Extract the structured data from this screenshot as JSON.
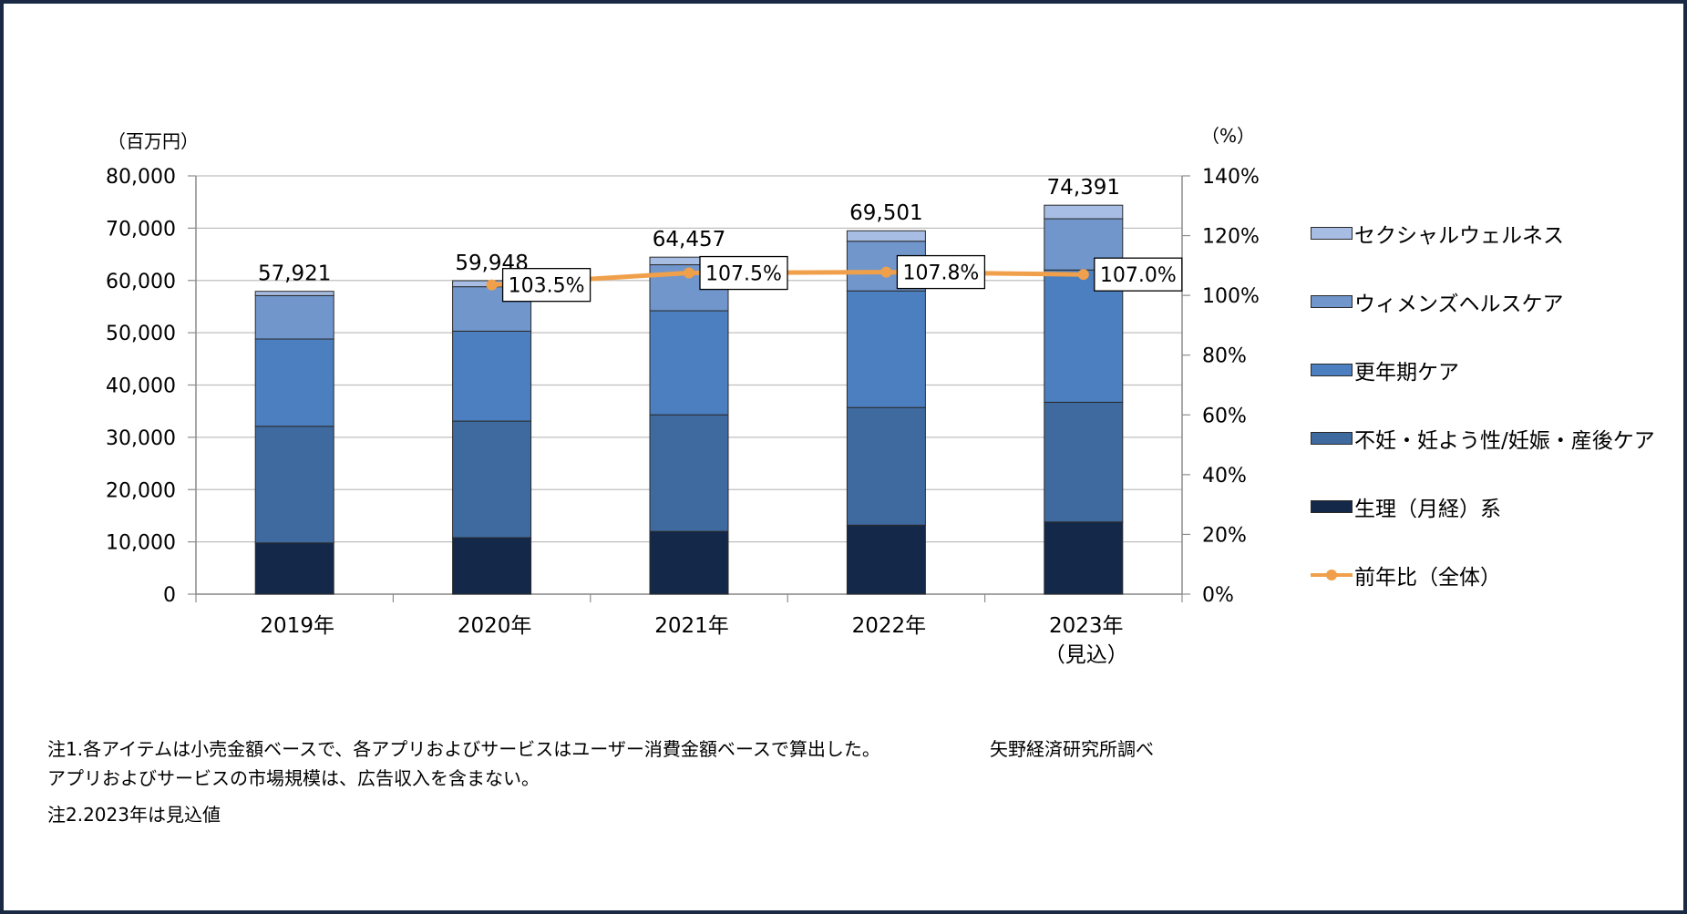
{
  "chart_data": {
    "type": "bar",
    "stacked": true,
    "categories": [
      "2019年",
      "2020年",
      "2021年",
      "2022年",
      "2023年（見込）"
    ],
    "series": [
      {
        "name": "生理（月経）系",
        "color": "#14284a",
        "values": [
          9800,
          10800,
          12000,
          13200,
          13800
        ]
      },
      {
        "name": "不妊・妊よう性/妊娠・産後ケア",
        "color": "#3f6aa0",
        "values": [
          22300,
          22300,
          22300,
          22500,
          22900
        ]
      },
      {
        "name": "更年期ケア",
        "color": "#4b7fbf",
        "values": [
          16700,
          17200,
          19900,
          22300,
          25300
        ]
      },
      {
        "name": "ウィメンズヘルスケア",
        "color": "#7096cc",
        "values": [
          8300,
          8500,
          8800,
          9500,
          9800
        ]
      },
      {
        "name": "セクシャルウェルネス",
        "color": "#a7bde3",
        "values": [
          821,
          1148,
          1457,
          2001,
          2591
        ]
      }
    ],
    "totals": [
      "57,921",
      "59,948",
      "64,457",
      "69,501",
      "74,391"
    ],
    "line": {
      "name": "前年比（全体）",
      "color": "#f0a04b",
      "values": [
        null,
        103.5,
        107.5,
        107.8,
        107.0
      ],
      "labels": [
        "",
        "103.5%",
        "107.5%",
        "107.8%",
        "107.0%"
      ]
    },
    "y_left": {
      "unit_label": "（百万円）",
      "min": 0,
      "max": 80000,
      "step": 10000,
      "tick_labels": [
        "0",
        "10,000",
        "20,000",
        "30,000",
        "40,000",
        "50,000",
        "60,000",
        "70,000",
        "80,000"
      ]
    },
    "y_right": {
      "unit_label": "（%）",
      "min": 0,
      "max": 140,
      "step": 20,
      "tick_labels": [
        "0%",
        "20%",
        "40%",
        "60%",
        "80%",
        "100%",
        "120%",
        "140%"
      ]
    },
    "x_label_lines": [
      [
        "2019年"
      ],
      [
        "2020年"
      ],
      [
        "2021年"
      ],
      [
        "2022年"
      ],
      [
        "2023年",
        "（見込）"
      ]
    ],
    "gridlines": true,
    "legend_position": "right"
  },
  "legend": {
    "items": [
      "セクシャルウェルネス",
      "ウィメンズヘルスケア",
      "更年期ケア",
      "不妊・妊よう性/妊娠・産後ケア",
      "生理（月経）系",
      "前年比（全体）"
    ],
    "colors": [
      "#a7bde3",
      "#7096cc",
      "#4b7fbf",
      "#3f6aa0",
      "#14284a",
      "#f0a04b"
    ]
  },
  "notes": {
    "line1": "注1.各アイテムは小売金額ベースで、各アプリおよびサービスはユーザー消費金額ベースで算出した。",
    "line2": "アプリおよびサービスの市場規模は、広告収入を含まない。",
    "line3": "注2.2023年は見込値"
  },
  "source": "矢野経済研究所調べ"
}
